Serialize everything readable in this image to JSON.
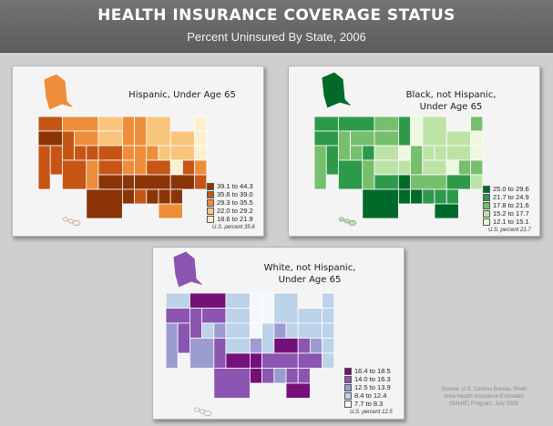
{
  "header": {
    "title": "HEALTH INSURANCE COVERAGE STATUS",
    "subtitle": "Percent Uninsured By State, 2006"
  },
  "panels": {
    "hispanic": {
      "title_line1": "Hispanic, Under Age 65",
      "title_line2": "",
      "legend": [
        "39.1 to 44.3",
        "35.6 to 39.0",
        "29.3 to 35.5",
        "22.0 to 29.2",
        "18.6 to 21.9"
      ],
      "legend_colors": [
        "#8a3407",
        "#c65515",
        "#ee8e3a",
        "#f9c57c",
        "#fdf0cf"
      ],
      "us_percent": "U.S. percent 35.6"
    },
    "black": {
      "title_line1": "Black, not Hispanic,",
      "title_line2": "Under Age 65",
      "legend": [
        "25.0 to 29.6",
        "21.7 to 24.9",
        "17.8 to 21.6",
        "15.2 to 17.7",
        "12.1 to 15.1"
      ],
      "legend_colors": [
        "#016a2b",
        "#2d9a4b",
        "#75bf6d",
        "#bde2a6",
        "#eef8de"
      ],
      "us_percent": "U.S. percent 21.7"
    },
    "white": {
      "title_line1": "White, not Hispanic,",
      "title_line2": "Under Age 65",
      "legend": [
        "16.4 to 18.5",
        "14.0 to 16.3",
        "12.5 to 13.9",
        "8.4 to 12.4",
        "7.7 to 8.3"
      ],
      "legend_colors": [
        "#75107a",
        "#8b55b1",
        "#9d9cd1",
        "#bcd3ea",
        "#f3f8fb"
      ],
      "us_percent": "U.S. percent 12.5"
    }
  },
  "source": {
    "line1": "Source: U.S. Census Bureau Small",
    "line2": "Area Health Insurance Estimates",
    "line3": "(SAHIE) Program, July 2009"
  },
  "outline_color": "#ffffff"
}
